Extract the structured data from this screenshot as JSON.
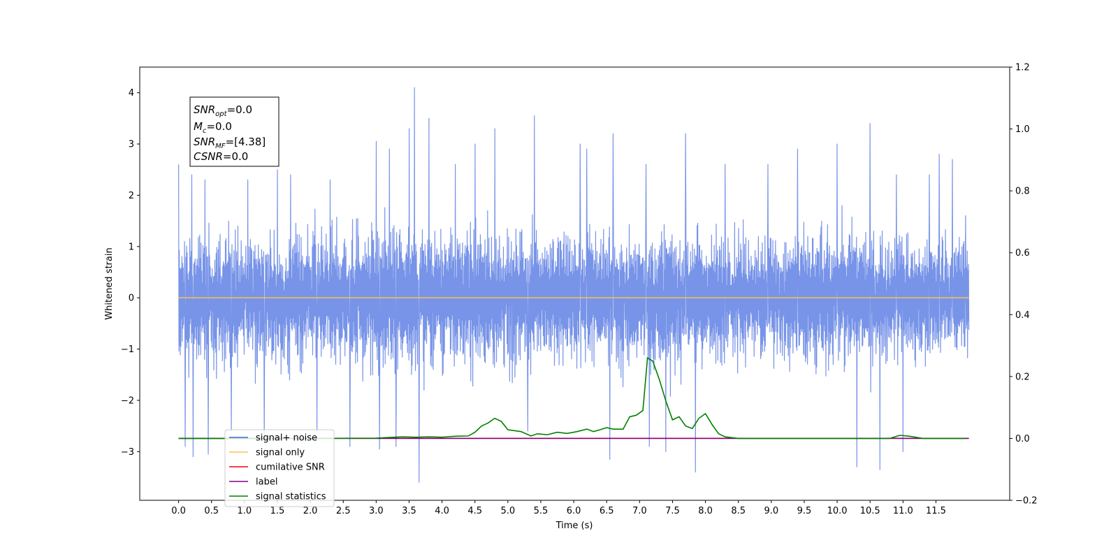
{
  "chart_data": {
    "type": "line",
    "title": "",
    "xlabel": "Time (s)",
    "ylabel": "Whitened strain",
    "xlim": [
      -0.59,
      12.62
    ],
    "ylim": [
      -3.95,
      4.5
    ],
    "y2lim": [
      -0.2,
      1.2
    ],
    "x_ticks": [
      0.0,
      0.5,
      1.0,
      1.5,
      2.0,
      2.5,
      3.0,
      3.5,
      4.0,
      4.5,
      5.0,
      5.5,
      6.0,
      6.5,
      7.0,
      7.5,
      8.0,
      8.5,
      9.0,
      9.5,
      10.0,
      10.5,
      11.0,
      11.5
    ],
    "x_tick_labels": [
      "0.0",
      "0.5",
      "1.0",
      "1.5",
      "2.0",
      "2.5",
      "3.0",
      "3.5",
      "4.0",
      "4.5",
      "5.0",
      "5.5",
      "6.0",
      "6.5",
      "7.0",
      "7.5",
      "8.0",
      "8.5",
      "9.0",
      "9.5",
      "10.0",
      "10.5",
      "11.0",
      "11.5"
    ],
    "y_ticks": [
      -3,
      -2,
      -1,
      0,
      1,
      2,
      3,
      4
    ],
    "y_tick_labels": [
      "−3",
      "−2",
      "−1",
      "0",
      "1",
      "2",
      "3",
      "4"
    ],
    "y2_ticks": [
      -0.2,
      0.0,
      0.2,
      0.4,
      0.6,
      0.8,
      1.0,
      1.2
    ],
    "y2_tick_labels": [
      "−0.2",
      "0.0",
      "0.2",
      "0.4",
      "0.6",
      "0.8",
      "1.0",
      "1.2"
    ],
    "grid": false,
    "legend_position": "bottom-left",
    "annotation": {
      "snr_opt": {
        "main": "SNR",
        "sub": "opt",
        "value": "=0.0"
      },
      "mc": {
        "main": "M",
        "sub": "c",
        "value": "=0.0"
      },
      "snr_mf": {
        "main": "SNR",
        "sub": "MF",
        "value": "=[4.38]"
      },
      "csnr": {
        "main": "CSNR",
        "value": "=0.0"
      }
    },
    "legend": [
      {
        "name": "signal+ noise",
        "color": "#4169e1"
      },
      {
        "name": "signal only",
        "color": "#ffc04c"
      },
      {
        "name": "cumilative SNR",
        "color": "#ff0000"
      },
      {
        "name": "label",
        "color": "#800080"
      },
      {
        "name": "signal statistics",
        "color": "#008000"
      }
    ],
    "series": [
      {
        "name": "signal+ noise",
        "axis": "left",
        "color": "#7894e8",
        "style": "noise",
        "x_range": [
          0.0,
          12.0
        ],
        "envelope_x": [
          0.0,
          0.5,
          1.0,
          1.5,
          2.0,
          2.5,
          3.0,
          3.5,
          4.0,
          4.5,
          5.0,
          5.5,
          6.0,
          6.5,
          7.0,
          7.5,
          8.0,
          8.5,
          9.0,
          9.5,
          10.0,
          10.5,
          11.0,
          11.5,
          12.0
        ],
        "dense_upper": [
          1.4,
          1.5,
          1.5,
          1.5,
          1.5,
          1.5,
          1.6,
          1.6,
          1.6,
          1.6,
          1.6,
          1.6,
          1.5,
          1.5,
          1.6,
          1.6,
          1.5,
          1.5,
          1.4,
          1.5,
          1.5,
          1.5,
          1.4,
          1.4,
          1.3
        ],
        "dense_lower": [
          -1.4,
          -1.5,
          -1.5,
          -1.5,
          -1.5,
          -1.5,
          -1.6,
          -1.6,
          -1.6,
          -1.6,
          -1.6,
          -1.6,
          -1.5,
          -1.5,
          -1.6,
          -1.6,
          -1.5,
          -1.5,
          -1.4,
          -1.5,
          -1.5,
          -1.5,
          -1.4,
          -1.4,
          -1.3
        ],
        "peaks": [
          {
            "x": 0.0,
            "y": 2.6
          },
          {
            "x": 0.1,
            "y": -2.9
          },
          {
            "x": 0.2,
            "y": 2.4
          },
          {
            "x": 0.22,
            "y": -3.1
          },
          {
            "x": 0.4,
            "y": 2.3
          },
          {
            "x": 0.45,
            "y": -3.05
          },
          {
            "x": 0.8,
            "y": -2.6
          },
          {
            "x": 1.05,
            "y": 2.3
          },
          {
            "x": 1.3,
            "y": -2.8
          },
          {
            "x": 1.5,
            "y": 2.5
          },
          {
            "x": 1.7,
            "y": 2.4
          },
          {
            "x": 2.1,
            "y": -2.6
          },
          {
            "x": 2.3,
            "y": 2.3
          },
          {
            "x": 2.6,
            "y": -2.9
          },
          {
            "x": 3.0,
            "y": 3.05
          },
          {
            "x": 3.05,
            "y": -2.95
          },
          {
            "x": 3.2,
            "y": 2.9
          },
          {
            "x": 3.3,
            "y": -2.9
          },
          {
            "x": 3.5,
            "y": 3.3
          },
          {
            "x": 3.58,
            "y": 4.1
          },
          {
            "x": 3.65,
            "y": -3.6
          },
          {
            "x": 3.8,
            "y": 3.5
          },
          {
            "x": 4.2,
            "y": 2.6
          },
          {
            "x": 4.5,
            "y": 3.0
          },
          {
            "x": 4.8,
            "y": 3.3
          },
          {
            "x": 5.4,
            "y": 3.55
          },
          {
            "x": 5.3,
            "y": -2.6
          },
          {
            "x": 6.1,
            "y": 3.0
          },
          {
            "x": 6.2,
            "y": 2.9
          },
          {
            "x": 6.6,
            "y": 3.2
          },
          {
            "x": 6.55,
            "y": -3.15
          },
          {
            "x": 7.1,
            "y": 2.6
          },
          {
            "x": 7.15,
            "y": -2.9
          },
          {
            "x": 7.4,
            "y": -3.0
          },
          {
            "x": 7.7,
            "y": 3.2
          },
          {
            "x": 7.85,
            "y": -3.4
          },
          {
            "x": 8.3,
            "y": 2.6
          },
          {
            "x": 8.95,
            "y": 2.6
          },
          {
            "x": 9.4,
            "y": 2.9
          },
          {
            "x": 10.0,
            "y": 3.0
          },
          {
            "x": 10.3,
            "y": -3.3
          },
          {
            "x": 10.5,
            "y": 3.4
          },
          {
            "x": 10.65,
            "y": -3.35
          },
          {
            "x": 10.9,
            "y": 2.4
          },
          {
            "x": 11.0,
            "y": -3.0
          },
          {
            "x": 11.4,
            "y": 2.4
          },
          {
            "x": 11.55,
            "y": 2.8
          },
          {
            "x": 11.75,
            "y": 2.7
          },
          {
            "x": 11.95,
            "y": 1.6
          }
        ]
      },
      {
        "name": "signal only",
        "axis": "left",
        "color": "#ffc04c",
        "x": [
          0.0,
          12.0
        ],
        "y": [
          0.0,
          0.0
        ]
      },
      {
        "name": "cumilative SNR",
        "axis": "right",
        "color": "#ff0000",
        "x": [
          0.0,
          12.0
        ],
        "y": [
          0.0,
          0.0
        ]
      },
      {
        "name": "label",
        "axis": "right",
        "color": "#800080",
        "x": [
          0.0,
          12.0
        ],
        "y": [
          0.0,
          0.0
        ]
      },
      {
        "name": "signal statistics",
        "axis": "right",
        "color": "#008000",
        "x": [
          0.0,
          1.0,
          2.0,
          3.0,
          3.2,
          3.4,
          3.6,
          3.8,
          4.0,
          4.2,
          4.4,
          4.5,
          4.6,
          4.7,
          4.8,
          4.9,
          5.0,
          5.2,
          5.35,
          5.45,
          5.6,
          5.75,
          5.9,
          6.05,
          6.2,
          6.3,
          6.4,
          6.5,
          6.6,
          6.75,
          6.85,
          6.95,
          7.05,
          7.12,
          7.2,
          7.3,
          7.4,
          7.5,
          7.6,
          7.7,
          7.8,
          7.9,
          8.0,
          8.1,
          8.2,
          8.3,
          8.5,
          9.0,
          10.0,
          10.8,
          10.95,
          11.1,
          11.3,
          11.6,
          11.95
        ],
        "y": [
          0.0,
          0.0,
          0.0,
          0.001,
          0.003,
          0.005,
          0.004,
          0.005,
          0.004,
          0.007,
          0.008,
          0.02,
          0.04,
          0.05,
          0.065,
          0.055,
          0.028,
          0.022,
          0.008,
          0.015,
          0.012,
          0.02,
          0.016,
          0.022,
          0.03,
          0.022,
          0.028,
          0.035,
          0.03,
          0.03,
          0.07,
          0.075,
          0.09,
          0.26,
          0.25,
          0.19,
          0.12,
          0.06,
          0.07,
          0.04,
          0.032,
          0.065,
          0.08,
          0.045,
          0.015,
          0.005,
          0.0,
          0.0,
          0.0,
          0.0,
          0.01,
          0.007,
          0.0,
          0.0,
          0.0
        ]
      }
    ]
  }
}
